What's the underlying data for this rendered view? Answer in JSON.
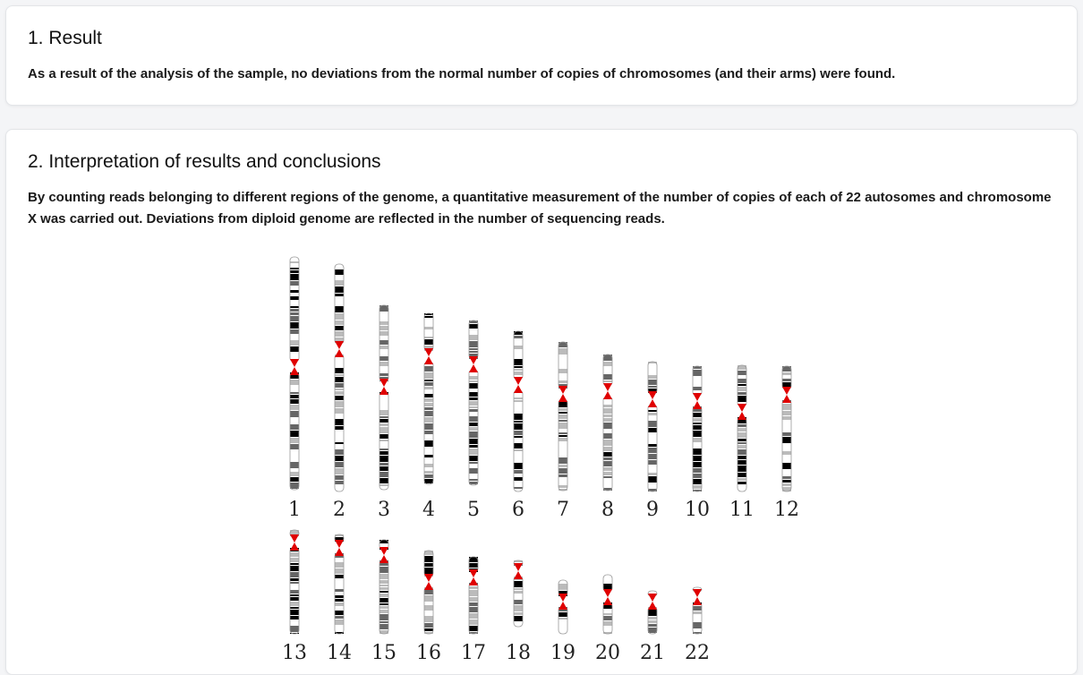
{
  "sections": {
    "result": {
      "title": "1. Result",
      "text": "As a result of the analysis of the sample, no deviations from the normal number of copies of chromosomes (and their arms) were found."
    },
    "interpretation": {
      "title": "2. Interpretation of results and conclusions",
      "text": "By counting reads belonging to different regions of the genome, a quantitative measurement of the number of copies of each of 22 autosomes and chromosome X was carried out. Deviations from diploid genome are reflected in the number of sequencing reads."
    }
  },
  "karyogram": {
    "colors": {
      "centromere": "#e00000",
      "band_dark": "#000000",
      "band_mid": "#666666",
      "band_light": "#bbbbbb",
      "band_white": "#ffffff",
      "outline": "#999999"
    },
    "rows": [
      [
        "1",
        "2",
        "3",
        "4",
        "5",
        "6",
        "7",
        "8",
        "9",
        "10",
        "11",
        "12"
      ],
      [
        "13",
        "14",
        "15",
        "16",
        "17",
        "18",
        "19",
        "20",
        "21",
        "22"
      ]
    ]
  }
}
